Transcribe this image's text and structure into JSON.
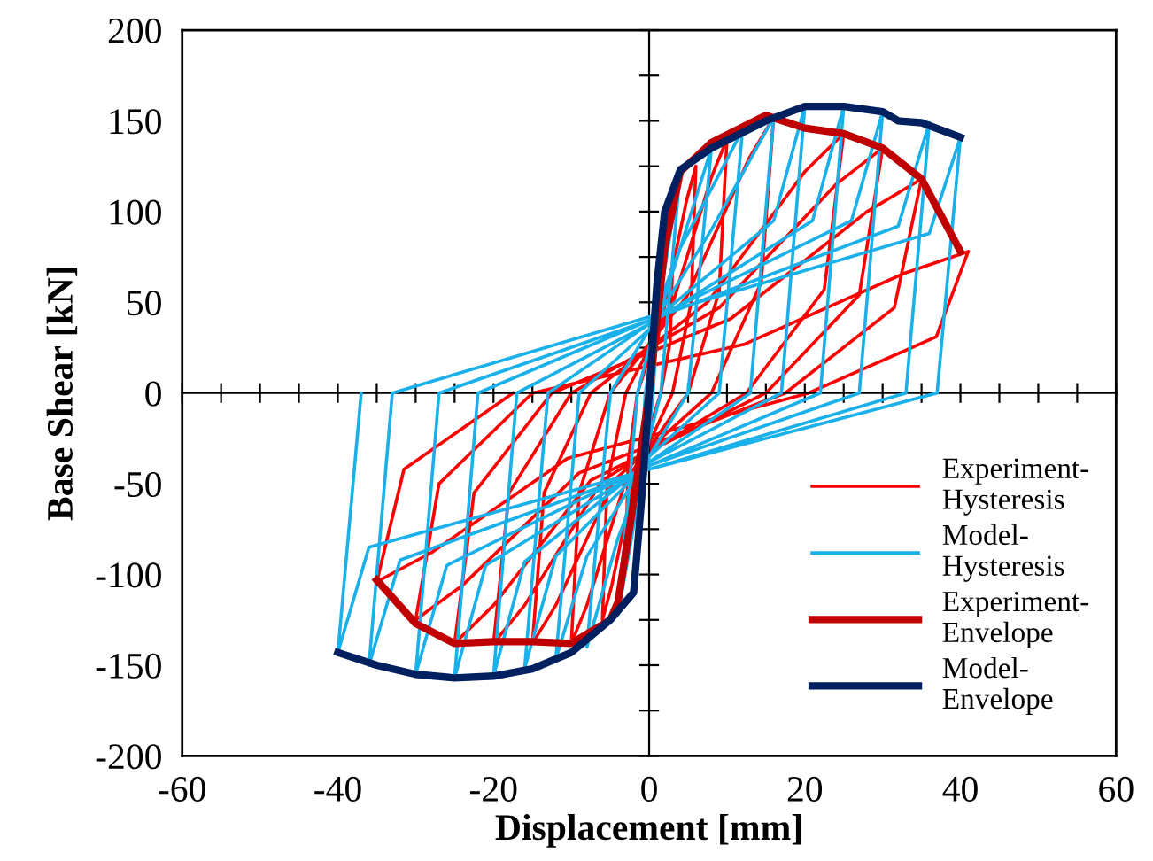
{
  "chart_data": {
    "type": "line",
    "xlabel": "Displacement [mm]",
    "ylabel": "Base Shear [kN]",
    "xlim": [
      -60,
      60
    ],
    "ylim": [
      -200,
      200
    ],
    "xticks": [
      -60,
      {
        "value": -55,
        "label": null
      },
      {
        "value": -50,
        "label": null
      },
      {
        "value": -45,
        "label": null
      },
      -40,
      {
        "value": -35,
        "label": null
      },
      {
        "value": -30,
        "label": null
      },
      {
        "value": -25,
        "label": null
      },
      -20,
      {
        "value": -15,
        "label": null
      },
      {
        "value": -10,
        "label": null
      },
      {
        "value": -5,
        "label": null
      },
      0,
      {
        "value": 5,
        "label": null
      },
      {
        "value": 10,
        "label": null
      },
      {
        "value": 15,
        "label": null
      },
      20,
      {
        "value": 25,
        "label": null
      },
      {
        "value": 30,
        "label": null
      },
      {
        "value": 35,
        "label": null
      },
      40,
      {
        "value": 45,
        "label": null
      },
      {
        "value": 50,
        "label": null
      },
      {
        "value": 55,
        "label": null
      },
      60
    ],
    "yticks": [
      -200,
      {
        "value": -175,
        "label": null
      },
      -150,
      {
        "value": -125,
        "label": null
      },
      -100,
      {
        "value": -75,
        "label": null
      },
      -50,
      {
        "value": -25,
        "label": null
      },
      0,
      {
        "value": 25,
        "label": null
      },
      50,
      {
        "value": 75,
        "label": null
      },
      100,
      {
        "value": 125,
        "label": null
      },
      150,
      {
        "value": 175,
        "label": null
      },
      200
    ],
    "legend": "bottom right",
    "marker": "none",
    "line_style": "solid",
    "series": [
      {
        "name": "Experiment-\nHysteresis",
        "color": "#ff0000",
        "x": [
          0,
          0.9,
          2.4,
          3,
          2.7,
          1.5,
          -0.9,
          -2.4,
          -3,
          -2.7,
          -1.5,
          1.8,
          4.8,
          6,
          5.4,
          3,
          -1.8,
          -4.8,
          -6,
          -5.4,
          -3,
          3,
          8,
          10,
          9,
          5,
          -3,
          -8,
          -10,
          -9,
          -5,
          4.8,
          12.8,
          16,
          14.4,
          8,
          -4.5,
          -12,
          -15,
          -13.5,
          -7.5,
          7.5,
          20,
          25,
          22.5,
          12.5,
          -6,
          -16,
          -20,
          -18,
          -10,
          9,
          24,
          30,
          27,
          15,
          -7.5,
          -20,
          -25,
          -22.5,
          -12.5,
          10.5,
          28,
          35,
          31.5,
          17.5,
          -9,
          -24,
          -30,
          -27,
          -15,
          12.3,
          32.8,
          41,
          36.9,
          20.5,
          -10.5,
          -28,
          -35,
          -31.5,
          -17.5
        ],
        "values": [
          0,
          25,
          60,
          70,
          28,
          0,
          -33,
          -81,
          -95,
          -38,
          0,
          44,
          106,
          125,
          50,
          0,
          -44,
          -106,
          -125,
          -50,
          0,
          49,
          119,
          140,
          56,
          0,
          -48,
          -117,
          -138,
          -55,
          0,
          53,
          129,
          152,
          61,
          0,
          -48,
          -117,
          -138,
          -55,
          0,
          50,
          122,
          143,
          57,
          0,
          -48,
          -117,
          -138,
          -55,
          0,
          47,
          115,
          135,
          54,
          0,
          -48,
          -117,
          -138,
          -55,
          0,
          41,
          100,
          118,
          47,
          0,
          -44,
          -106,
          -125,
          -50,
          0,
          27,
          66,
          78,
          31,
          0,
          -36,
          -88,
          -104,
          -42,
          0
        ]
      },
      {
        "name": "Model-\nHysteresis",
        "color": "#1ab0ea",
        "x": [
          0,
          2,
          0.5,
          -2,
          -0.5,
          4,
          1.5,
          0,
          -4,
          -1.5,
          0,
          8,
          5,
          0,
          -4,
          -8,
          -5,
          0,
          4,
          12,
          9,
          0,
          -8,
          -12,
          -9,
          0,
          8,
          16,
          13,
          0,
          -12,
          -16,
          -13,
          0,
          16,
          20,
          17,
          0,
          -16,
          -20,
          -17,
          0,
          21,
          25,
          22,
          0,
          -21,
          -25,
          -22,
          0,
          26,
          30,
          27,
          0,
          -26,
          -30,
          -27,
          0,
          32,
          36,
          33,
          0,
          -32,
          -36,
          -33,
          0,
          36,
          40,
          37,
          0,
          -36,
          -40,
          -37
        ],
        "values": [
          0,
          100,
          0,
          -110,
          0,
          123,
          0,
          -25,
          -122,
          0,
          25,
          135,
          0,
          -35,
          -80,
          -140,
          0,
          35,
          80,
          145,
          0,
          -35,
          -90,
          -147,
          0,
          35,
          90,
          152,
          0,
          -38,
          -90,
          -152,
          0,
          38,
          95,
          158,
          0,
          -38,
          -93,
          -156,
          0,
          38,
          95,
          158,
          0,
          -40,
          -95,
          -157,
          0,
          40,
          95,
          155,
          0,
          -40,
          -95,
          -155,
          0,
          40,
          92,
          149,
          0,
          -42,
          -92,
          -150,
          0,
          42,
          88,
          141,
          0,
          -42,
          -85,
          -143,
          0
        ]
      },
      {
        "name": "Experiment-\nEnvelope",
        "color": "#c00000",
        "x": [
          -35,
          -30,
          -25,
          -20,
          -15,
          -10,
          -5,
          -4,
          -2,
          0,
          2,
          4,
          8,
          15,
          20,
          25,
          30,
          35,
          40
        ],
        "values": [
          -103,
          -127,
          -138,
          -137,
          -137,
          -138,
          -125,
          -115,
          -60,
          0,
          80,
          122,
          138,
          153,
          146,
          143,
          135,
          118,
          78
        ]
      },
      {
        "name": "Model-\nEnvelope",
        "color": "#002060",
        "x": [
          -40,
          -35,
          -30,
          -25,
          -20,
          -15,
          -10,
          -5,
          -2,
          -1,
          0,
          1,
          2,
          4,
          8,
          15,
          20,
          25,
          30,
          32,
          35,
          40
        ],
        "values": [
          -143,
          -150,
          -155,
          -157,
          -156,
          -152,
          -143,
          -125,
          -110,
          -60,
          0,
          60,
          100,
          123,
          135,
          150,
          158,
          158,
          155,
          150,
          149,
          141
        ]
      }
    ]
  }
}
